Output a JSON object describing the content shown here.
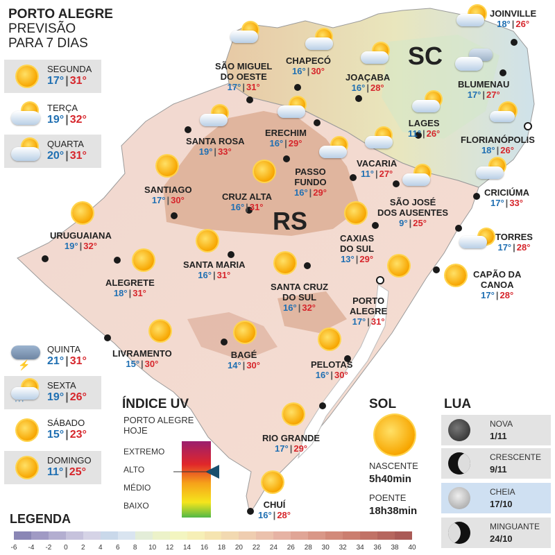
{
  "header": {
    "line1": "PORTO ALEGRE",
    "line2": "PREVISÃO",
    "line3": "PARA 7 DIAS"
  },
  "forecast": [
    {
      "day": "SEGUNDA",
      "min": "17°",
      "max": "31°",
      "icon": "sun-icon"
    },
    {
      "day": "TERÇA",
      "min": "19°",
      "max": "32°",
      "icon": "partly-cloudy-icon"
    },
    {
      "day": "QUARTA",
      "min": "20°",
      "max": "31°",
      "icon": "partly-cloudy-icon"
    },
    {
      "day": "QUINTA",
      "min": "21°",
      "max": "31°",
      "icon": "storm-icon"
    },
    {
      "day": "SEXTA",
      "min": "19°",
      "max": "26°",
      "icon": "sun-rain-icon"
    },
    {
      "day": "SÁBADO",
      "min": "15°",
      "max": "23°",
      "icon": "sun-icon"
    },
    {
      "day": "DOMINGO",
      "min": "11°",
      "max": "25°",
      "icon": "sun-icon"
    }
  ],
  "states": {
    "rs": "RS",
    "sc": "SC"
  },
  "cities": [
    {
      "name": "SÃO MIGUEL",
      "name2": "DO OESTE",
      "min": "17°",
      "max": "31°"
    },
    {
      "name": "CHAPECÓ",
      "min": "16°",
      "max": "30°"
    },
    {
      "name": "JOAÇABA",
      "min": "16°",
      "max": "28°"
    },
    {
      "name": "JOINVILLE",
      "min": "18°",
      "max": "26°"
    },
    {
      "name": "BLUMENAU",
      "min": "17°",
      "max": "27°"
    },
    {
      "name": "LAGES",
      "min": "11°",
      "max": "26°"
    },
    {
      "name": "FLORIANÓPOLIS",
      "min": "18°",
      "max": "26°"
    },
    {
      "name": "SANTA ROSA",
      "min": "19°",
      "max": "33°"
    },
    {
      "name": "ERECHIM",
      "min": "16°",
      "max": "29°"
    },
    {
      "name": "VACARIA",
      "min": "11°",
      "max": "27°"
    },
    {
      "name": "PASSO",
      "name2": "FUNDO",
      "min": "16°",
      "max": "29°"
    },
    {
      "name": "SANTIAGO",
      "min": "17°",
      "max": "30°"
    },
    {
      "name": "CRUZ ALTA",
      "min": "16°",
      "max": "31°"
    },
    {
      "name": "CRICIÚMA",
      "min": "17°",
      "max": "33°"
    },
    {
      "name": "SÃO JOSÉ",
      "name2": "DOS AUSENTES",
      "min": "9°",
      "max": "25°"
    },
    {
      "name": "URUGUAIANA",
      "min": "19°",
      "max": "32°"
    },
    {
      "name": "CAXIAS",
      "name2": "DO SUL",
      "min": "13°",
      "max": "29°"
    },
    {
      "name": "TORRES",
      "min": "17°",
      "max": "28°"
    },
    {
      "name": "SANTA MARIA",
      "min": "16°",
      "max": "31°"
    },
    {
      "name": "ALEGRETE",
      "min": "18°",
      "max": "31°"
    },
    {
      "name": "CAPÃO DA",
      "name2": "CANOA",
      "min": "17°",
      "max": "28°"
    },
    {
      "name": "SANTA CRUZ",
      "name2": "DO SUL",
      "min": "16°",
      "max": "32°"
    },
    {
      "name": "PORTO",
      "name2": "ALEGRE",
      "min": "17°",
      "max": "31°"
    },
    {
      "name": "LIVRAMENTO",
      "min": "15°",
      "max": "30°"
    },
    {
      "name": "BAGÉ",
      "min": "14°",
      "max": "30°"
    },
    {
      "name": "PELOTAS",
      "min": "16°",
      "max": "30°"
    },
    {
      "name": "RIO GRANDE",
      "min": "17°",
      "max": "29°"
    },
    {
      "name": "CHUÍ",
      "min": "16°",
      "max": "28°"
    }
  ],
  "uv": {
    "title": "ÍNDICE UV",
    "subtitle1": "PORTO ALEGRE",
    "subtitle2": "HOJE",
    "levels": [
      "EXTREMO",
      "ALTO",
      "MÉDIO",
      "BAIXO"
    ],
    "current": "ALTO"
  },
  "sol": {
    "title": "SOL",
    "sunrise_label": "NASCENTE",
    "sunrise": "5h40min",
    "sunset_label": "POENTE",
    "sunset": "18h38min"
  },
  "lua": {
    "title": "LUA",
    "phases": [
      {
        "name": "NOVA",
        "date": "1/11"
      },
      {
        "name": "CRESCENTE",
        "date": "9/11"
      },
      {
        "name": "CHEIA",
        "date": "17/10"
      },
      {
        "name": "MINGUANTE",
        "date": "24/10"
      }
    ]
  },
  "legend": {
    "title": "LEGENDA",
    "ticks": [
      "-6",
      "-4",
      "-2",
      "0",
      "2",
      "4",
      "6",
      "8",
      "10",
      "12",
      "14",
      "16",
      "18",
      "20",
      "22",
      "24",
      "26",
      "28",
      "30",
      "32",
      "34",
      "36",
      "38",
      "40"
    ],
    "colors": [
      "#8a86b5",
      "#a09ac4",
      "#b3aed0",
      "#c6c2dc",
      "#d5d3e6",
      "#c9d8ea",
      "#d9e4f0",
      "#e3edd8",
      "#ecf2c9",
      "#f3f5c0",
      "#f6efb6",
      "#f5e4b0",
      "#f2d9b1",
      "#efcdb0",
      "#ebc1ac",
      "#e6b3a4",
      "#e0a596",
      "#d99787",
      "#d28a7a",
      "#cb7e6f",
      "#c17266",
      "#b6665e",
      "#aa5a56"
    ]
  }
}
